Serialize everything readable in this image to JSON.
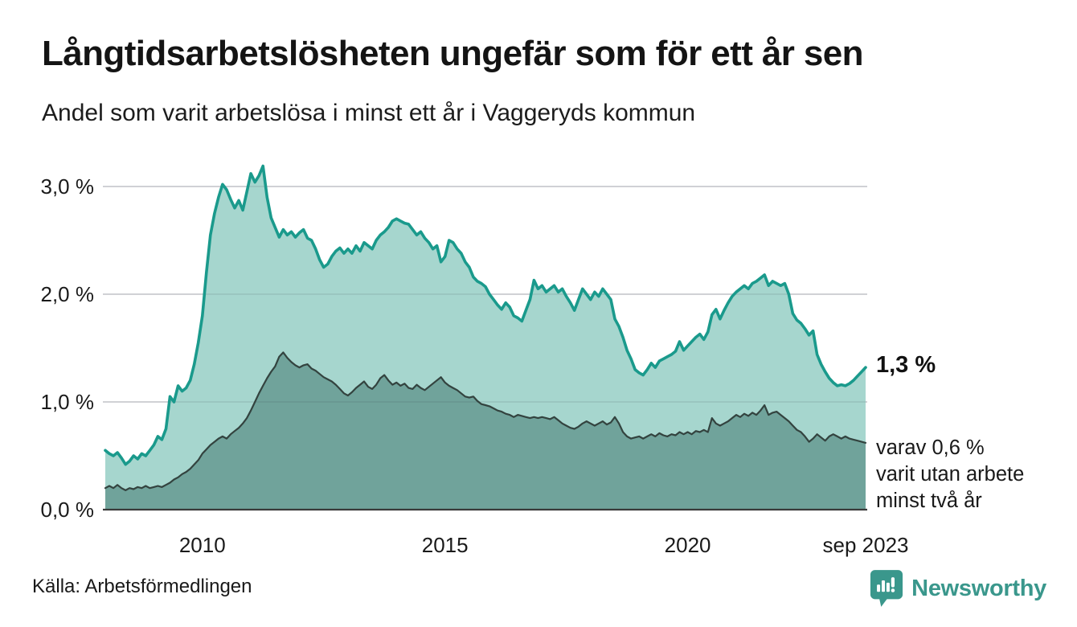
{
  "header": {
    "title": "Långtidsarbetslösheten ungefär som för ett år sen",
    "subtitle": "Andel som varit arbetslösa i minst ett år i Vaggeryds kommun"
  },
  "chart_data": {
    "type": "area",
    "unit": "%",
    "x_start": "2008-01",
    "x_end": "2023-09",
    "frequency": "monthly",
    "ylim": [
      0,
      3.3
    ],
    "grid": "horizontal",
    "legend": "none",
    "yticks": [
      {
        "value": 0,
        "label": "0,0 %"
      },
      {
        "value": 1,
        "label": "1,0 %"
      },
      {
        "value": 2,
        "label": "2,0 %"
      },
      {
        "value": 3,
        "label": "3,0 %"
      }
    ],
    "xticks": [
      {
        "month_index": 24,
        "label": "2010"
      },
      {
        "month_index": 84,
        "label": "2015"
      },
      {
        "month_index": 144,
        "label": "2020"
      },
      {
        "month_index": 188,
        "label": "sep 2023"
      }
    ],
    "series": [
      {
        "name": "Arbetslösa minst ett år",
        "color": "#1a9a8c",
        "fill": "#a6d6ce",
        "last_value": 1.3,
        "values": [
          0.55,
          0.52,
          0.5,
          0.53,
          0.48,
          0.42,
          0.45,
          0.5,
          0.47,
          0.52,
          0.5,
          0.55,
          0.6,
          0.68,
          0.65,
          0.75,
          1.05,
          1.0,
          1.15,
          1.1,
          1.13,
          1.2,
          1.35,
          1.55,
          1.8,
          2.2,
          2.55,
          2.75,
          2.9,
          3.02,
          2.97,
          2.88,
          2.8,
          2.87,
          2.78,
          2.95,
          3.12,
          3.04,
          3.1,
          3.19,
          2.9,
          2.71,
          2.62,
          2.53,
          2.6,
          2.55,
          2.58,
          2.53,
          2.57,
          2.6,
          2.52,
          2.5,
          2.42,
          2.32,
          2.25,
          2.28,
          2.35,
          2.4,
          2.43,
          2.38,
          2.42,
          2.38,
          2.45,
          2.4,
          2.48,
          2.45,
          2.42,
          2.5,
          2.55,
          2.58,
          2.62,
          2.68,
          2.7,
          2.68,
          2.66,
          2.65,
          2.6,
          2.55,
          2.58,
          2.52,
          2.48,
          2.42,
          2.45,
          2.3,
          2.35,
          2.5,
          2.48,
          2.42,
          2.38,
          2.3,
          2.25,
          2.16,
          2.12,
          2.1,
          2.07,
          2.0,
          1.95,
          1.9,
          1.86,
          1.92,
          1.88,
          1.8,
          1.78,
          1.75,
          1.85,
          1.95,
          2.13,
          2.05,
          2.08,
          2.02,
          2.05,
          2.08,
          2.02,
          2.05,
          1.98,
          1.92,
          1.85,
          1.95,
          2.05,
          2.0,
          1.95,
          2.02,
          1.98,
          2.05,
          2.0,
          1.95,
          1.77,
          1.7,
          1.6,
          1.48,
          1.4,
          1.3,
          1.27,
          1.25,
          1.3,
          1.36,
          1.32,
          1.38,
          1.4,
          1.42,
          1.44,
          1.47,
          1.56,
          1.48,
          1.52,
          1.56,
          1.6,
          1.63,
          1.58,
          1.65,
          1.81,
          1.86,
          1.77,
          1.85,
          1.92,
          1.98,
          2.02,
          2.05,
          2.08,
          2.05,
          2.1,
          2.12,
          2.15,
          2.18,
          2.08,
          2.12,
          2.1,
          2.08,
          2.1,
          2.0,
          1.82,
          1.76,
          1.73,
          1.68,
          1.62,
          1.66,
          1.44,
          1.35,
          1.28,
          1.22,
          1.18,
          1.15,
          1.16,
          1.15,
          1.17,
          1.2,
          1.24,
          1.28,
          1.32
        ]
      },
      {
        "name": "Varav arbetslösa minst två år",
        "color": "#33433f",
        "fill": "#70a39b",
        "last_value": 0.6,
        "values": [
          0.2,
          0.22,
          0.2,
          0.23,
          0.2,
          0.18,
          0.2,
          0.19,
          0.21,
          0.2,
          0.22,
          0.2,
          0.21,
          0.22,
          0.21,
          0.23,
          0.25,
          0.28,
          0.3,
          0.33,
          0.35,
          0.38,
          0.42,
          0.46,
          0.52,
          0.56,
          0.6,
          0.63,
          0.66,
          0.68,
          0.66,
          0.7,
          0.73,
          0.76,
          0.8,
          0.85,
          0.92,
          1.0,
          1.08,
          1.15,
          1.22,
          1.28,
          1.33,
          1.42,
          1.46,
          1.41,
          1.37,
          1.34,
          1.32,
          1.34,
          1.35,
          1.31,
          1.29,
          1.26,
          1.23,
          1.21,
          1.19,
          1.16,
          1.12,
          1.08,
          1.06,
          1.09,
          1.13,
          1.16,
          1.19,
          1.14,
          1.12,
          1.16,
          1.22,
          1.25,
          1.2,
          1.16,
          1.18,
          1.15,
          1.17,
          1.13,
          1.12,
          1.16,
          1.13,
          1.11,
          1.14,
          1.17,
          1.2,
          1.23,
          1.18,
          1.15,
          1.13,
          1.11,
          1.08,
          1.05,
          1.04,
          1.05,
          1.01,
          0.98,
          0.97,
          0.96,
          0.94,
          0.92,
          0.91,
          0.89,
          0.88,
          0.86,
          0.88,
          0.87,
          0.86,
          0.85,
          0.86,
          0.85,
          0.86,
          0.85,
          0.84,
          0.86,
          0.83,
          0.8,
          0.78,
          0.76,
          0.75,
          0.77,
          0.8,
          0.82,
          0.8,
          0.78,
          0.8,
          0.82,
          0.79,
          0.81,
          0.86,
          0.8,
          0.72,
          0.68,
          0.66,
          0.67,
          0.68,
          0.66,
          0.68,
          0.7,
          0.68,
          0.71,
          0.69,
          0.68,
          0.7,
          0.69,
          0.72,
          0.7,
          0.72,
          0.7,
          0.73,
          0.72,
          0.74,
          0.72,
          0.85,
          0.8,
          0.78,
          0.8,
          0.82,
          0.85,
          0.88,
          0.86,
          0.89,
          0.87,
          0.9,
          0.88,
          0.92,
          0.97,
          0.88,
          0.9,
          0.91,
          0.88,
          0.85,
          0.82,
          0.78,
          0.74,
          0.72,
          0.68,
          0.63,
          0.66,
          0.7,
          0.67,
          0.64,
          0.68,
          0.7,
          0.68,
          0.66,
          0.68,
          0.66,
          0.65,
          0.64,
          0.63,
          0.62
        ]
      }
    ],
    "annotations": [
      {
        "text": "1,3 %",
        "style": "bold",
        "refers_to": "Arbetslösa minst ett år, sep 2023"
      },
      {
        "text": "varav 0,6 %\nvarit utan arbete\nminst två år",
        "style": "regular",
        "refers_to": "Varav arbetslösa minst två år, sep 2023"
      }
    ]
  },
  "footer": {
    "source": "Källa: Arbetsförmedlingen",
    "logo_text": "Newsworthy"
  },
  "colors": {
    "series1_line": "#1a9a8c",
    "series1_fill": "#a6d6ce",
    "series2_line": "#33433f",
    "series2_fill": "#70a39b",
    "gridline": "#e2e2e6",
    "baseline": "#3b3b3b",
    "logo_teal": "#3a978c",
    "text": "#1a1a1a"
  }
}
